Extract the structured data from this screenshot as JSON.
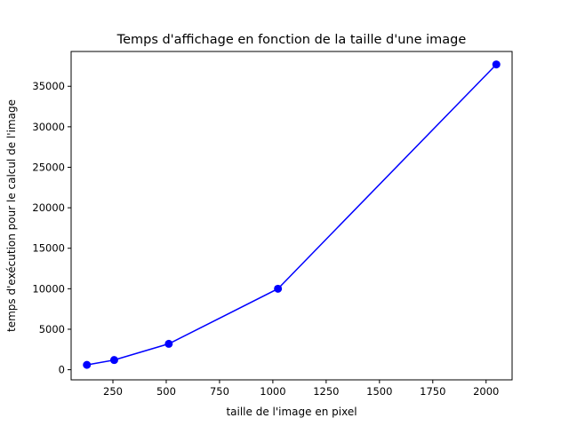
{
  "chart_data": {
    "type": "line",
    "title": "Temps d'affichage en fonction de la taille d'une image",
    "xlabel": "taille de l'image en pixel",
    "ylabel": "temps d'exécution pour le calcul de l'image",
    "x": [
      128,
      256,
      512,
      1024,
      2048
    ],
    "series": [
      {
        "values": [
          600,
          1200,
          3200,
          10000,
          37700
        ],
        "color": "#0000ff",
        "marker": "circle"
      }
    ],
    "xlim": [
      54,
      2122
    ],
    "ylim": [
      -1250,
      39300
    ],
    "xticks": [
      250,
      500,
      750,
      1000,
      1250,
      1500,
      1750,
      2000
    ],
    "yticks": [
      0,
      5000,
      10000,
      15000,
      20000,
      25000,
      30000,
      35000
    ],
    "grid": false,
    "legend": "none"
  }
}
